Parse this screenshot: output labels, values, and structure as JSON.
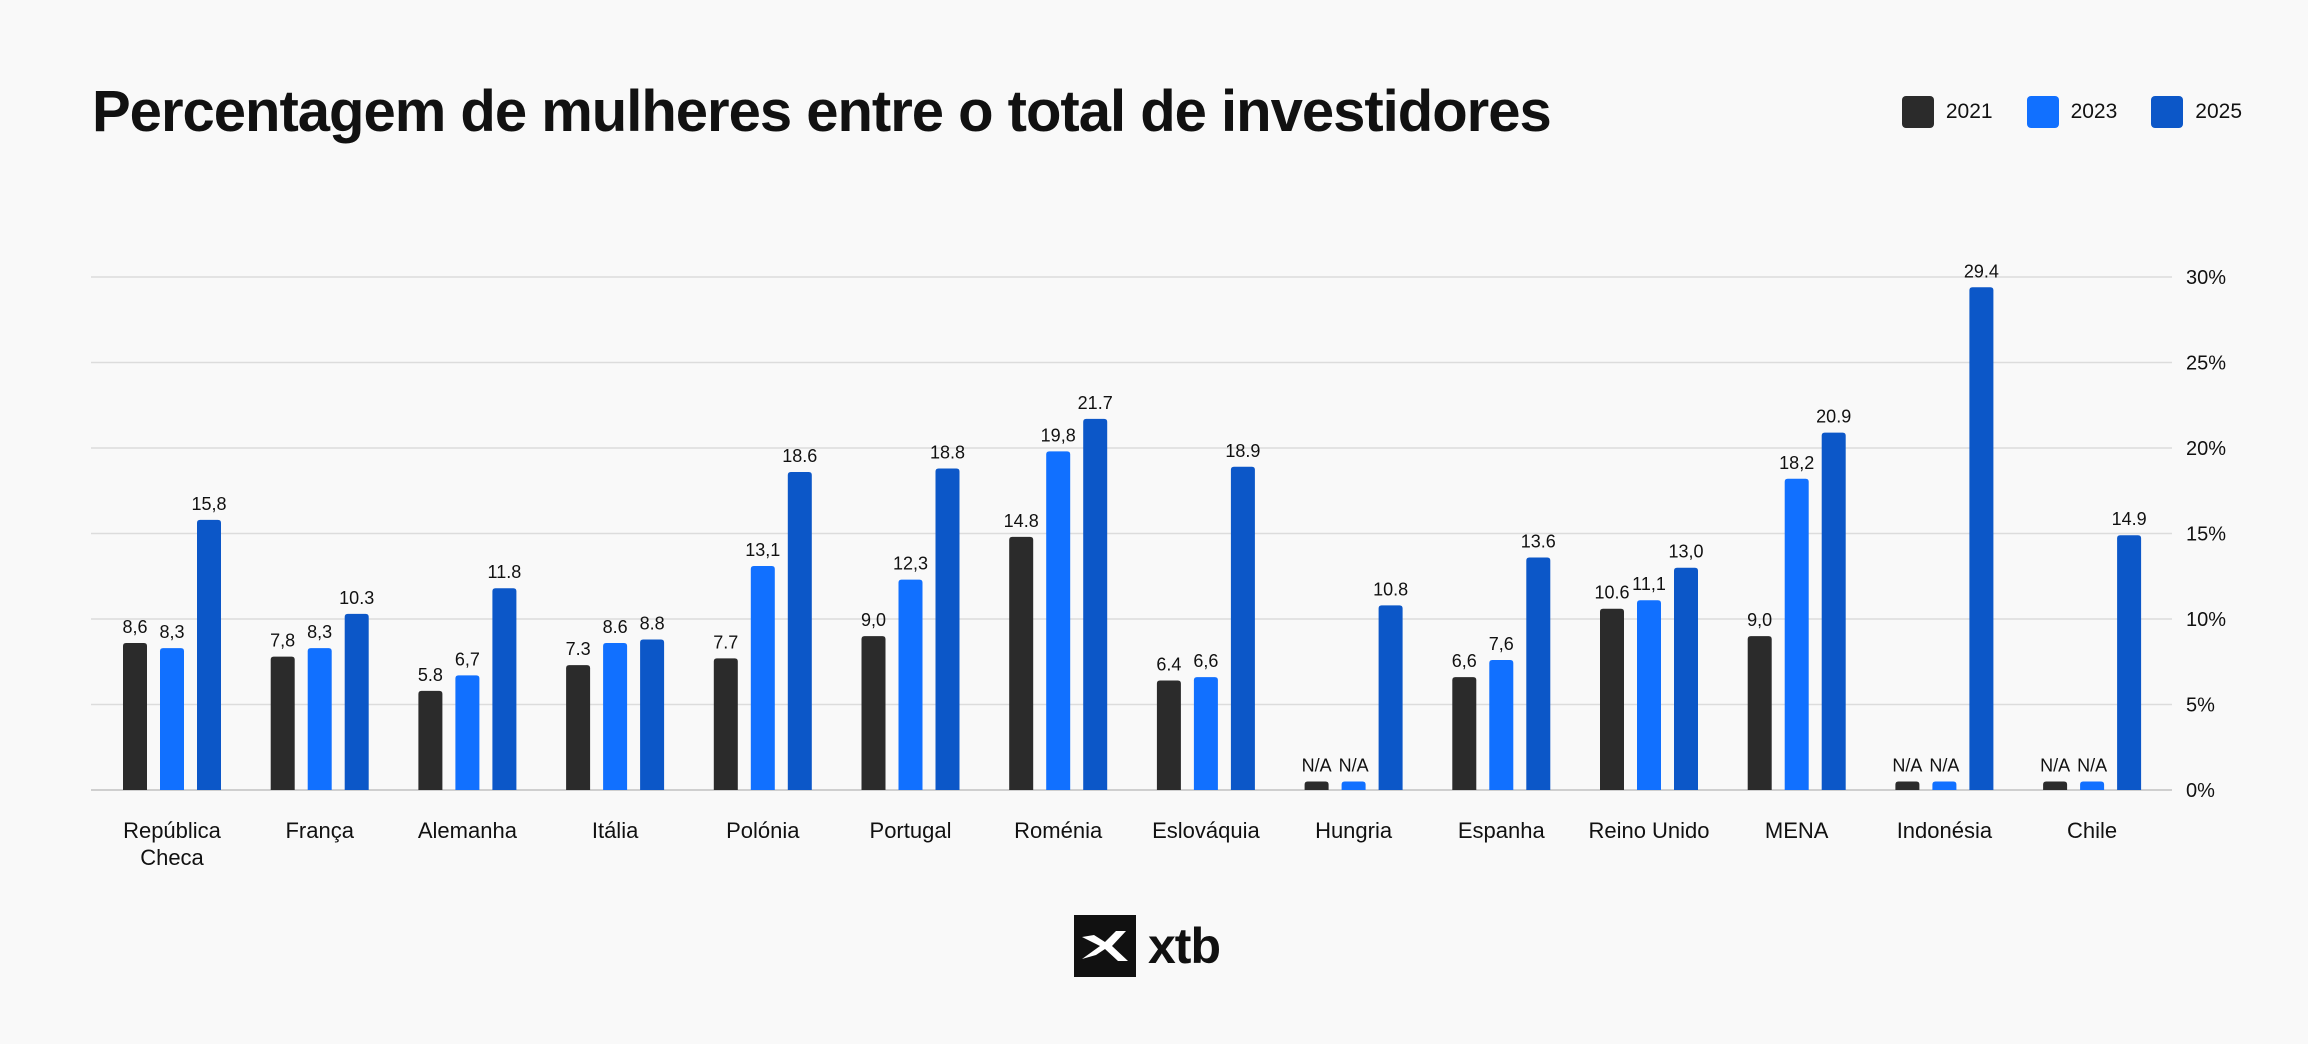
{
  "chart_data": {
    "type": "bar",
    "title": "Percentagem de mulheres entre o total de investidores",
    "categories": [
      "República Checa",
      "França",
      "Alemanha",
      "Itália",
      "Polónia",
      "Portugal",
      "Roménia",
      "Eslováquia",
      "Hungria",
      "Espanha",
      "Reino Unido",
      "MENA",
      "Indonésia",
      "Chile"
    ],
    "series": [
      {
        "name": "2021",
        "color": "#2b2b2b",
        "values": [
          8.6,
          7.8,
          5.8,
          7.3,
          7.7,
          9.0,
          14.8,
          6.4,
          null,
          6.6,
          10.6,
          9.0,
          null,
          null
        ],
        "labels": [
          "8,6",
          "7,8",
          "5.8",
          "7.3",
          "7.7",
          "9,0",
          "14.8",
          "6.4",
          "N/A",
          "6,6",
          "10.6",
          "9,0",
          "N/A",
          "N/A"
        ]
      },
      {
        "name": "2023",
        "color": "#1170ff",
        "values": [
          8.3,
          8.3,
          6.7,
          8.6,
          13.1,
          12.3,
          19.8,
          6.6,
          null,
          7.6,
          11.1,
          18.2,
          null,
          null
        ],
        "labels": [
          "8,3",
          "8,3",
          "6,7",
          "8.6",
          "13,1",
          "12,3",
          "19,8",
          "6,6",
          "N/A",
          "7,6",
          "11,1",
          "18,2",
          "N/A",
          "N/A"
        ]
      },
      {
        "name": "2025",
        "color": "#0c57c8",
        "values": [
          15.8,
          10.3,
          11.8,
          8.8,
          18.6,
          18.8,
          21.7,
          18.9,
          10.8,
          13.6,
          13.0,
          20.9,
          29.4,
          14.9
        ],
        "labels": [
          "15,8",
          "10.3",
          "11.8",
          "8.8",
          "18.6",
          "18.8",
          "21.7",
          "18.9",
          "10.8",
          "13.6",
          "13,0",
          "20.9",
          "29.4",
          "14.9"
        ]
      }
    ],
    "yticks": [
      "0%",
      "5%",
      "10%",
      "15%",
      "20%",
      "25%",
      "30%"
    ],
    "ylim": [
      0,
      30
    ],
    "grid": true,
    "yaxis_position": "right",
    "legend_position": "top-right"
  },
  "logo": {
    "text": "xtb"
  }
}
